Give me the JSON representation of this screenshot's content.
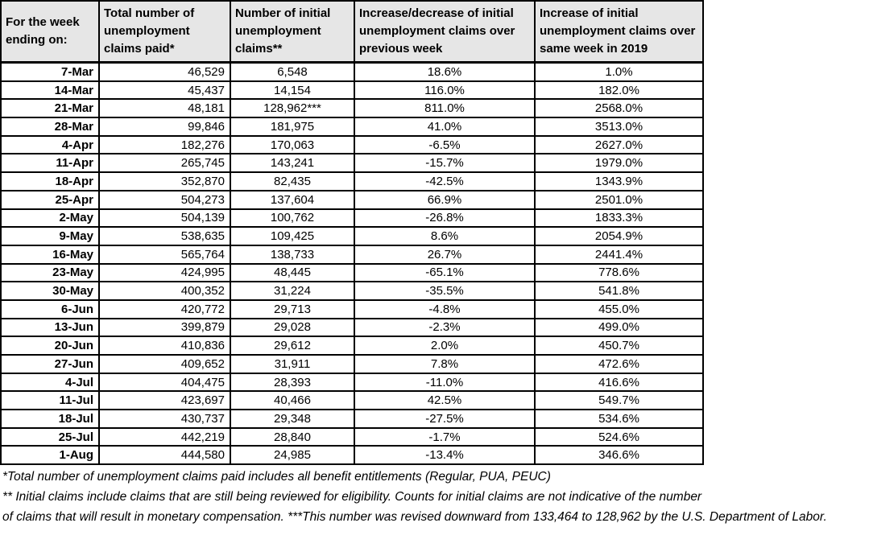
{
  "table": {
    "headers": [
      "For the week ending on:",
      "Total number of unemployment claims paid*",
      "Number of initial unemployment claims**",
      "Increase/decrease of initial unemployment claims over previous week",
      "Increase of initial unemployment claims over same week in 2019"
    ],
    "rows": [
      {
        "date": "7-Mar",
        "paid": "46,529",
        "initial": "6,548",
        "wow": "18.6%",
        "vs2019": "1.0%"
      },
      {
        "date": "14-Mar",
        "paid": "45,437",
        "initial": "14,154",
        "wow": "116.0%",
        "vs2019": "182.0%"
      },
      {
        "date": "21-Mar",
        "paid": "48,181",
        "initial": "128,962***",
        "wow": "811.0%",
        "vs2019": "2568.0%"
      },
      {
        "date": "28-Mar",
        "paid": "99,846",
        "initial": "181,975",
        "wow": "41.0%",
        "vs2019": "3513.0%"
      },
      {
        "date": "4-Apr",
        "paid": "182,276",
        "initial": "170,063",
        "wow": "-6.5%",
        "vs2019": "2627.0%"
      },
      {
        "date": "11-Apr",
        "paid": "265,745",
        "initial": "143,241",
        "wow": "-15.7%",
        "vs2019": "1979.0%"
      },
      {
        "date": "18-Apr",
        "paid": "352,870",
        "initial": "82,435",
        "wow": "-42.5%",
        "vs2019": "1343.9%"
      },
      {
        "date": "25-Apr",
        "paid": "504,273",
        "initial": "137,604",
        "wow": "66.9%",
        "vs2019": "2501.0%"
      },
      {
        "date": "2-May",
        "paid": "504,139",
        "initial": "100,762",
        "wow": "-26.8%",
        "vs2019": "1833.3%"
      },
      {
        "date": "9-May",
        "paid": "538,635",
        "initial": "109,425",
        "wow": "8.6%",
        "vs2019": "2054.9%"
      },
      {
        "date": "16-May",
        "paid": "565,764",
        "initial": "138,733",
        "wow": "26.7%",
        "vs2019": "2441.4%"
      },
      {
        "date": "23-May",
        "paid": "424,995",
        "initial": "48,445",
        "wow": "-65.1%",
        "vs2019": "778.6%"
      },
      {
        "date": "30-May",
        "paid": "400,352",
        "initial": "31,224",
        "wow": "-35.5%",
        "vs2019": "541.8%"
      },
      {
        "date": "6-Jun",
        "paid": "420,772",
        "initial": "29,713",
        "wow": "-4.8%",
        "vs2019": "455.0%"
      },
      {
        "date": "13-Jun",
        "paid": "399,879",
        "initial": "29,028",
        "wow": "-2.3%",
        "vs2019": "499.0%"
      },
      {
        "date": "20-Jun",
        "paid": "410,836",
        "initial": "29,612",
        "wow": "2.0%",
        "vs2019": "450.7%"
      },
      {
        "date": "27-Jun",
        "paid": "409,652",
        "initial": "31,911",
        "wow": "7.8%",
        "vs2019": "472.6%"
      },
      {
        "date": "4-Jul",
        "paid": "404,475",
        "initial": "28,393",
        "wow": "-11.0%",
        "vs2019": "416.6%"
      },
      {
        "date": "11-Jul",
        "paid": "423,697",
        "initial": "40,466",
        "wow": "42.5%",
        "vs2019": "549.7%"
      },
      {
        "date": "18-Jul",
        "paid": "430,737",
        "initial": "29,348",
        "wow": "-27.5%",
        "vs2019": "534.6%"
      },
      {
        "date": "25-Jul",
        "paid": "442,219",
        "initial": "28,840",
        "wow": "-1.7%",
        "vs2019": "524.6%"
      },
      {
        "date": "1-Aug",
        "paid": "444,580",
        "initial": "24,985",
        "wow": "-13.4%",
        "vs2019": "346.6%"
      }
    ]
  },
  "footnotes": [
    "*Total number of unemployment claims paid includes all benefit entitlements (Regular, PUA, PEUC)",
    "** Initial claims include claims that are still being reviewed for eligibility. Counts for initial claims are not indicative of the number",
    "of claims that will result in monetary compensation. ***This number was revised downward from 133,464 to 128,962 by the U.S. Department of Labor."
  ],
  "colors": {
    "header_bg": "#e6e6e6",
    "border": "#000000",
    "text": "#000000"
  }
}
